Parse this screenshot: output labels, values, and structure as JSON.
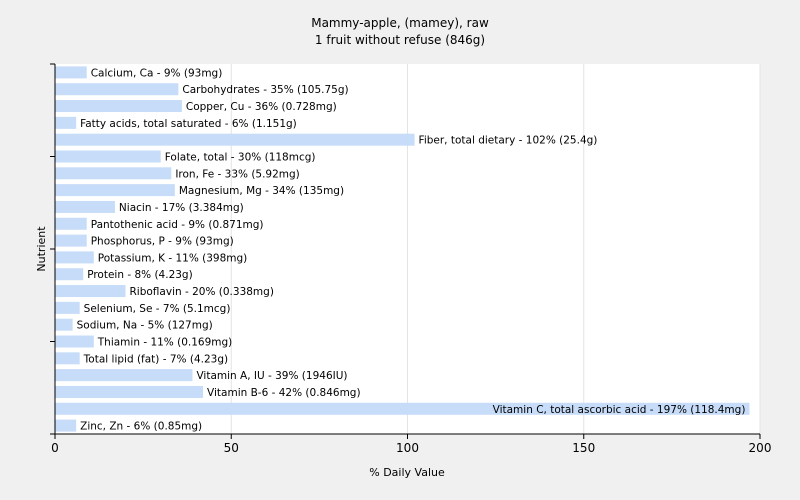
{
  "chart_data": {
    "type": "bar",
    "orientation": "horizontal",
    "title": "Mammy-apple, (mamey), raw",
    "subtitle": "1 fruit without refuse (846g)",
    "xlabel": "% Daily Value",
    "ylabel": "Nutrient",
    "xlim": [
      0,
      200
    ],
    "xticks": [
      "0",
      "50",
      "100",
      "150",
      "200"
    ],
    "grid": true,
    "bar_color": "#c6dcf8",
    "categories": [
      "Calcium, Ca",
      "Carbohydrates",
      "Copper, Cu",
      "Fatty acids, total saturated",
      "Fiber, total dietary",
      "Folate, total",
      "Iron, Fe",
      "Magnesium, Mg",
      "Niacin",
      "Pantothenic acid",
      "Phosphorus, P",
      "Potassium, K",
      "Protein",
      "Riboflavin",
      "Selenium, Se",
      "Sodium, Na",
      "Thiamin",
      "Total lipid (fat)",
      "Vitamin A, IU",
      "Vitamin B-6",
      "Vitamin C, total ascorbic acid",
      "Zinc, Zn"
    ],
    "values": [
      9,
      35,
      36,
      6,
      102,
      30,
      33,
      34,
      17,
      9,
      9,
      11,
      8,
      20,
      7,
      5,
      11,
      7,
      39,
      42,
      197,
      6
    ],
    "labels": [
      "Calcium, Ca - 9% (93mg)",
      "Carbohydrates - 35% (105.75g)",
      "Copper, Cu - 36% (0.728mg)",
      "Fatty acids, total saturated - 6% (1.151g)",
      "Fiber, total dietary - 102% (25.4g)",
      "Folate, total - 30% (118mcg)",
      "Iron, Fe - 33% (5.92mg)",
      "Magnesium, Mg - 34% (135mg)",
      "Niacin - 17% (3.384mg)",
      "Pantothenic acid - 9% (0.871mg)",
      "Phosphorus, P - 9% (93mg)",
      "Potassium, K - 11% (398mg)",
      "Protein - 8% (4.23g)",
      "Riboflavin - 20% (0.338mg)",
      "Selenium, Se - 7% (5.1mcg)",
      "Sodium, Na - 5% (127mg)",
      "Thiamin - 11% (0.169mg)",
      "Total lipid (fat) - 7% (4.23g)",
      "Vitamin A, IU - 39% (1946IU)",
      "Vitamin B-6 - 42% (0.846mg)",
      "Vitamin C, total ascorbic acid - 197% (118.4mg)",
      "Zinc, Zn - 6% (0.85mg)"
    ]
  }
}
